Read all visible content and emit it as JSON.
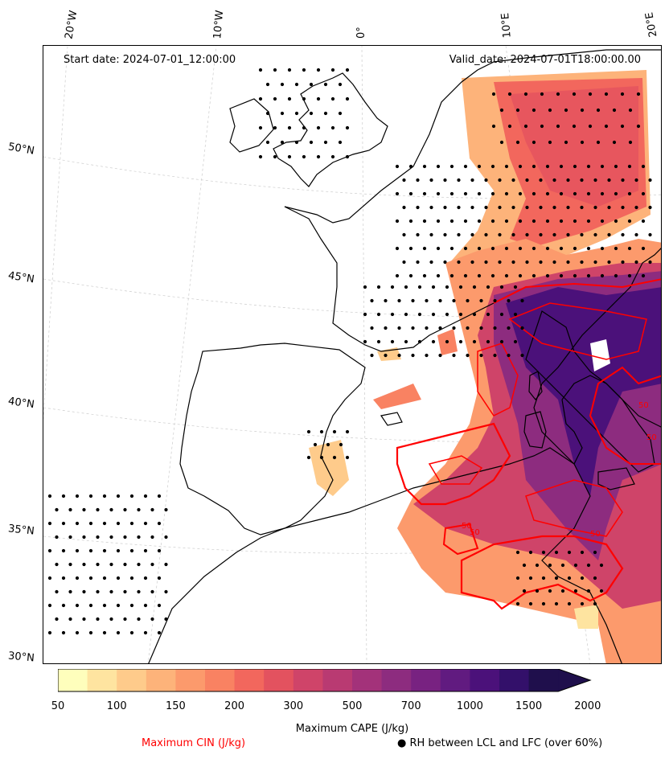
{
  "map": {
    "start_date": "Start date: 2024-07-01_12:00:00",
    "valid_date": "Valid_date: 2024-07-01T18:00:00.00",
    "lon_labels": [
      "20°W",
      "10°W",
      "0°",
      "10°E",
      "20°E"
    ],
    "lat_labels": [
      "50°N",
      "45°N",
      "40°N",
      "35°N",
      "30°N"
    ],
    "coastline_color": "#000000",
    "cin_contour_color": "#ff0000",
    "cin_contour_labels": [
      "50",
      "50",
      "50",
      "50",
      "50"
    ]
  },
  "colorbar": {
    "label": "Maximum CAPE (J/kg)",
    "ticks": [
      "50",
      "100",
      "150",
      "200",
      "300",
      "500",
      "700",
      "1000",
      "1500",
      "2000"
    ],
    "colors": [
      "#fefebc",
      "#fee4a0",
      "#fecb8b",
      "#fdb37a",
      "#fc9a6c",
      "#f98262",
      "#f2675d",
      "#e3525f",
      "#cf4469",
      "#b93a72",
      "#a3327a",
      "#8d2c7f",
      "#782281",
      "#611b80",
      "#4b117a",
      "#33106a",
      "#1f0f4c"
    ]
  },
  "legend": {
    "cin_label": "Maximum CIN (J/kg)",
    "rh_label": "● RH between LCL and LFC (over 60%)"
  }
}
